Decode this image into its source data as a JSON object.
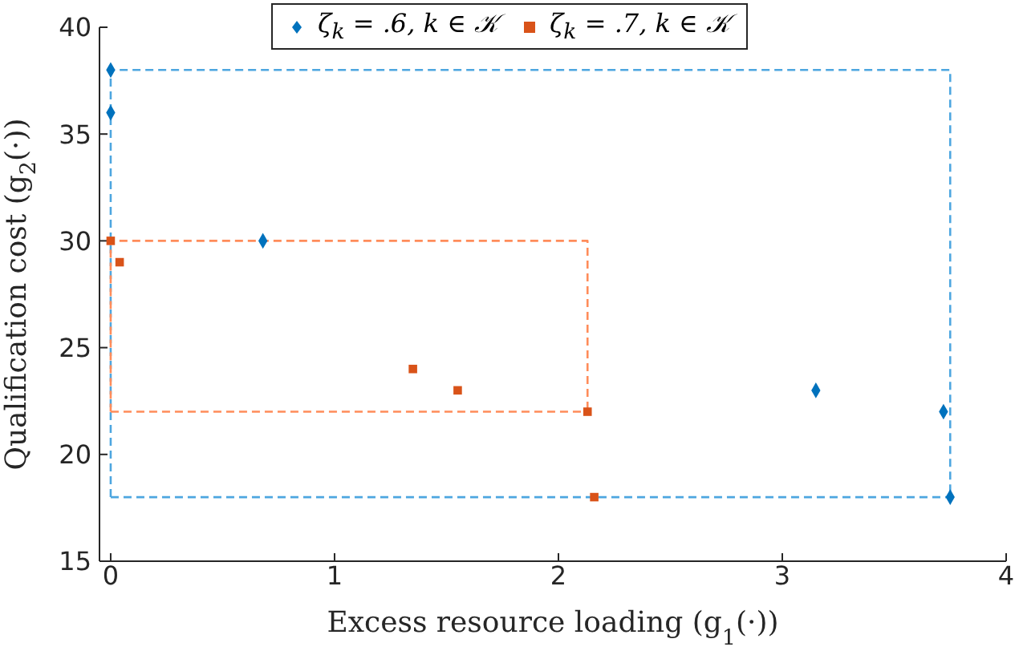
{
  "chart_data": {
    "type": "scatter",
    "xlabel": "Excess resource loading (g$_{1}$(·))",
    "ylabel": "Qualification cost  (g$_{2}$(·))",
    "xlim": [
      -0.05,
      4
    ],
    "xticks": [
      0,
      1,
      2,
      3,
      4
    ],
    "ylim": [
      15,
      40
    ],
    "yticks": [
      15,
      20,
      25,
      30,
      35,
      40
    ],
    "grid": false,
    "legend": "top",
    "series": [
      {
        "name": "ζ$_{k}$ = .6, k ∈ 𝒦",
        "type": "scatter",
        "marker": "diamond",
        "color": "#0072bd",
        "x": [
          0,
          0,
          0.68,
          3.15,
          3.72,
          3.75
        ],
        "values": [
          38,
          36,
          30,
          23,
          22,
          18
        ]
      },
      {
        "name": "ζ$_{k}$ = .7, k ∈ 𝒦",
        "type": "scatter",
        "marker": "square",
        "color": "#d95319",
        "x": [
          0,
          0.04,
          1.35,
          1.55,
          2.13,
          2.16
        ],
        "values": [
          30,
          29,
          24,
          23,
          22,
          18
        ]
      },
      {
        "type": "line",
        "marker": "none",
        "line_style": "dashed",
        "color": "#4da6e0",
        "x": [
          0,
          0,
          3.75,
          3.75
        ],
        "values": [
          18,
          38,
          38,
          18
        ]
      },
      {
        "type": "line",
        "marker": "none",
        "line_style": "dashed",
        "color": "#4da6e0",
        "x": [
          0,
          3.75
        ],
        "values": [
          18,
          18
        ]
      },
      {
        "type": "line",
        "marker": "none",
        "line_style": "dashed",
        "color": "#ff8c5a",
        "x": [
          0,
          0,
          2.13,
          2.13
        ],
        "values": [
          22,
          30,
          30,
          22
        ]
      },
      {
        "type": "line",
        "marker": "none",
        "line_style": "dashed",
        "color": "#ff8c5a",
        "x": [
          0,
          2.13
        ],
        "values": [
          22,
          22
        ]
      }
    ]
  }
}
